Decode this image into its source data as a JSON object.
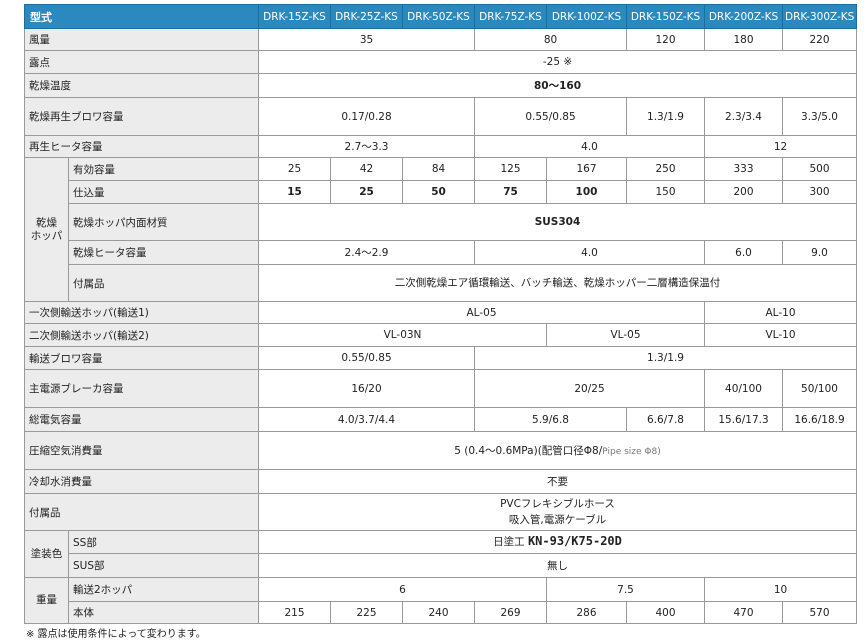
{
  "header": {
    "label": "型式",
    "models": [
      "DRK-15Z-KS",
      "DRK-25Z-KS",
      "DRK-50Z-KS",
      "DRK-75Z-KS",
      "DRK-100Z-KS",
      "DRK-150Z-KS",
      "DRK-200Z-KS",
      "DRK-300Z-KS"
    ]
  },
  "groups": {
    "hopper": "乾燥\nホッパ",
    "paint": "塗装色",
    "weight": "重量"
  },
  "rows": [
    {
      "label": "風量",
      "h": 22,
      "cells": [
        {
          "v": "35",
          "s": 3
        },
        {
          "v": "80",
          "s": 2
        },
        {
          "v": "120",
          "s": 1
        },
        {
          "v": "180",
          "s": 1
        },
        {
          "v": "220",
          "s": 1
        }
      ]
    },
    {
      "label": "露点",
      "h": 23,
      "cells": [
        {
          "v": "-25 ※",
          "s": 8
        }
      ]
    },
    {
      "label": "乾燥温度",
      "h": 24,
      "cells": [
        {
          "v": "80～160",
          "s": 8,
          "b": true
        }
      ]
    },
    {
      "label": "乾燥再生ブロワ容量",
      "h": 38,
      "cells": [
        {
          "v": "0.17/0.28",
          "s": 3
        },
        {
          "v": "0.55/0.85",
          "s": 2
        },
        {
          "v": "1.3/1.9",
          "s": 1
        },
        {
          "v": "2.3/3.4",
          "s": 1
        },
        {
          "v": "3.3/5.0",
          "s": 1
        }
      ]
    },
    {
      "label": "再生ヒータ容量",
      "h": 22,
      "cells": [
        {
          "v": "2.7～3.3",
          "s": 3
        },
        {
          "v": "4.0",
          "s": 3
        },
        {
          "v": "12",
          "s": 2
        }
      ]
    },
    {
      "group": "hopper",
      "gs": 5,
      "label": "有効容量",
      "h": 23,
      "cells": [
        {
          "v": "25",
          "s": 1
        },
        {
          "v": "42",
          "s": 1
        },
        {
          "v": "84",
          "s": 1
        },
        {
          "v": "125",
          "s": 1
        },
        {
          "v": "167",
          "s": 1
        },
        {
          "v": "250",
          "s": 1
        },
        {
          "v": "333",
          "s": 1
        },
        {
          "v": "500",
          "s": 1
        }
      ]
    },
    {
      "group": "hopper",
      "label": "仕込量",
      "h": 23,
      "cells": [
        {
          "v": "15",
          "s": 1,
          "b": true
        },
        {
          "v": "25",
          "s": 1,
          "b": true
        },
        {
          "v": "50",
          "s": 1,
          "b": true
        },
        {
          "v": "75",
          "s": 1,
          "b": true
        },
        {
          "v": "100",
          "s": 1,
          "b": true
        },
        {
          "v": "150",
          "s": 1
        },
        {
          "v": "200",
          "s": 1
        },
        {
          "v": "300",
          "s": 1
        }
      ]
    },
    {
      "group": "hopper",
      "label": "乾燥ホッパ内面材質",
      "h": 37,
      "cells": [
        {
          "v": "SUS304",
          "s": 8,
          "b": true
        }
      ]
    },
    {
      "group": "hopper",
      "label": "乾燥ヒータ容量",
      "h": 24,
      "cells": [
        {
          "v": "2.4～2.9",
          "s": 3
        },
        {
          "v": "4.0",
          "s": 3
        },
        {
          "v": "6.0",
          "s": 1
        },
        {
          "v": "9.0",
          "s": 1
        }
      ]
    },
    {
      "group": "hopper",
      "label": "付属品",
      "h": 37,
      "cells": [
        {
          "v": "二次側乾燥エア循環輸送、バッチ輸送、乾燥ホッパー二層構造保温付",
          "s": 8
        }
      ]
    },
    {
      "label": "一次側輸送ホッパ(輸送1)",
      "h": 22,
      "cells": [
        {
          "v": "AL-05",
          "s": 6
        },
        {
          "v": "AL-10",
          "s": 2
        }
      ]
    },
    {
      "label": "二次側輸送ホッパ(輸送2)",
      "h": 23,
      "cells": [
        {
          "v": "VL-03N",
          "s": 4
        },
        {
          "v": "VL-05",
          "s": 2
        },
        {
          "v": "VL-10",
          "s": 2
        }
      ]
    },
    {
      "label": "輸送ブロワ容量",
      "h": 23,
      "cells": [
        {
          "v": "0.55/0.85",
          "s": 3
        },
        {
          "v": "1.3/1.9",
          "s": 5
        }
      ]
    },
    {
      "label": "主電源ブレーカ容量",
      "h": 38,
      "cells": [
        {
          "v": "16/20",
          "s": 3
        },
        {
          "v": "20/25",
          "s": 3
        },
        {
          "v": "40/100",
          "s": 1
        },
        {
          "v": "50/100",
          "s": 1
        }
      ]
    },
    {
      "label": "総電気容量",
      "h": 24,
      "cells": [
        {
          "v": "4.0/3.7/4.4",
          "s": 3
        },
        {
          "v": "5.9/6.8",
          "s": 2
        },
        {
          "v": "6.6/7.8",
          "s": 1
        },
        {
          "v": "15.6/17.3",
          "s": 1
        },
        {
          "v": "16.6/18.9",
          "s": 1
        }
      ]
    },
    {
      "label": "圧縮空気消費量",
      "h": 38,
      "cells": [
        {
          "v": "5 (0.4～0.6MPa)(配管口径Φ8/",
          "small": "Pipe size Φ8)",
          "s": 8
        }
      ]
    },
    {
      "label": "冷却水消費量",
      "h": 24,
      "cells": [
        {
          "v": "不要",
          "s": 8
        }
      ]
    },
    {
      "label": "付属品",
      "h": 37,
      "cells": [
        {
          "v": "PVCフレキシブルホース\n吸入管,電源ケーブル",
          "s": 8
        }
      ]
    },
    {
      "group": "paint",
      "gs": 2,
      "label": "SS部",
      "h": 23,
      "cells": [
        {
          "v": "日塗工 ",
          "mono": "KN-93/K75-20D",
          "s": 8
        }
      ]
    },
    {
      "group": "paint",
      "label": "SUS部",
      "h": 24,
      "cells": [
        {
          "v": "無し",
          "s": 8
        }
      ]
    },
    {
      "group": "weight",
      "gs": 2,
      "label": "輸送2ホッパ",
      "h": 24,
      "cells": [
        {
          "v": "6",
          "s": 4
        },
        {
          "v": "7.5",
          "s": 2
        },
        {
          "v": "10",
          "s": 2
        }
      ]
    },
    {
      "group": "weight",
      "label": "本体",
      "h": 22,
      "cells": [
        {
          "v": "215",
          "s": 1
        },
        {
          "v": "225",
          "s": 1
        },
        {
          "v": "240",
          "s": 1
        },
        {
          "v": "269",
          "s": 1
        },
        {
          "v": "286",
          "s": 1
        },
        {
          "v": "400",
          "s": 1
        },
        {
          "v": "470",
          "s": 1
        },
        {
          "v": "570",
          "s": 1
        }
      ]
    }
  ],
  "footnote": "※ 露点は使用条件によって変わります。",
  "colors": {
    "header_bg": "#2a8abf",
    "label_bg": "#ececec"
  }
}
